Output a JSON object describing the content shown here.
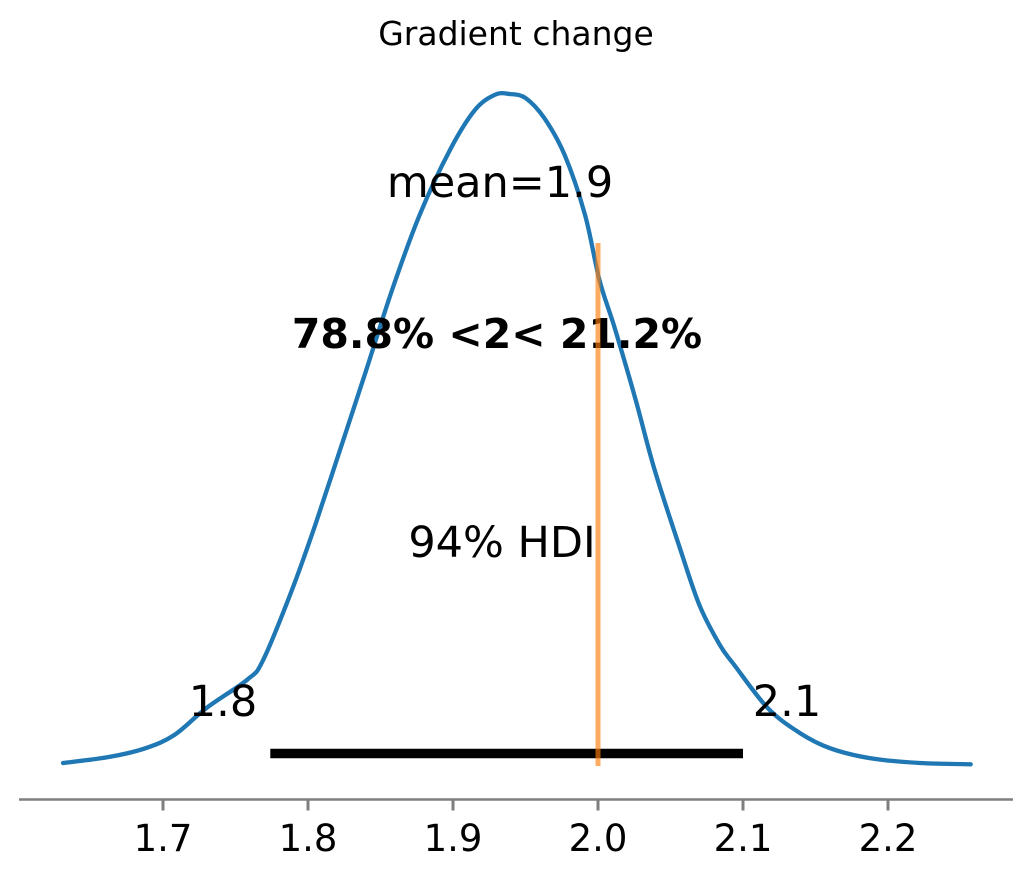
{
  "title": "Gradient change",
  "annotations": {
    "mean_label": "mean=1.9",
    "ref_label": "78.8% <2< 21.2%",
    "hdi_label": "94% HDI",
    "hdi_lower_label": "1.8",
    "hdi_upper_label": "2.1"
  },
  "colors": {
    "curve": "#1f77b4",
    "ref_line": "#ff7f0e",
    "ref_text": "#ff7f0e",
    "hdi_bar": "#000000",
    "axis": "#7f7f7f",
    "text": "#000000",
    "background": "#ffffff"
  },
  "chart_data": {
    "type": "line",
    "subtype": "posterior-kde",
    "title": "Gradient change",
    "xlabel": "",
    "ylabel": "",
    "grid": false,
    "legend_position": "none",
    "xlim": [
      1.6,
      2.29
    ],
    "x_ticks": [
      1.7,
      1.8,
      1.9,
      2.0,
      2.1,
      2.2
    ],
    "x_tick_labels": [
      "1.7",
      "1.8",
      "1.9",
      "2.0",
      "2.1",
      "2.2"
    ],
    "mean": 1.9,
    "ref_value": 2,
    "pct_below_ref": 78.8,
    "pct_above_ref": 21.2,
    "hdi": {
      "probability": 0.94,
      "lower": 1.774,
      "upper": 2.1,
      "lower_label": "1.8",
      "upper_label": "2.1"
    },
    "density": {
      "x": [
        1.631,
        1.663,
        1.688,
        1.708,
        1.73,
        1.758,
        1.769,
        1.789,
        1.805,
        1.822,
        1.839,
        1.858,
        1.877,
        1.898,
        1.915,
        1.929,
        1.939,
        1.95,
        1.963,
        1.977,
        1.991,
        2.001,
        2.012,
        2.026,
        2.039,
        2.057,
        2.07,
        2.084,
        2.094,
        2.117,
        2.139,
        2.16,
        2.188,
        2.222,
        2.257
      ],
      "y": [
        0.003,
        0.012,
        0.025,
        0.045,
        0.085,
        0.127,
        0.156,
        0.261,
        0.358,
        0.469,
        0.581,
        0.708,
        0.82,
        0.917,
        0.976,
        0.999,
        1.0,
        0.994,
        0.964,
        0.909,
        0.82,
        0.723,
        0.648,
        0.544,
        0.44,
        0.32,
        0.238,
        0.179,
        0.149,
        0.085,
        0.048,
        0.025,
        0.01,
        0.003,
        0.001
      ]
    }
  }
}
